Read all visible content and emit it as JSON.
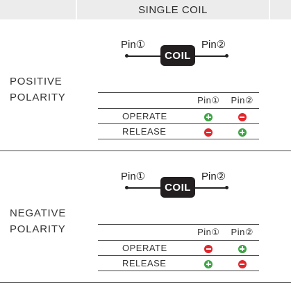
{
  "header": {
    "title": "SINGLE COIL"
  },
  "symbols": {
    "plus_color": "#3da544",
    "minus_color": "#e2262c"
  },
  "sections": [
    {
      "polarity_line1": "POSITIVE",
      "polarity_line2": "POLARITY",
      "diagram": {
        "pin_left": "Pin①",
        "pin_right": "Pin②",
        "coil": "COIL"
      },
      "table": {
        "pin1_header": "Pin①",
        "pin2_header": "Pin②",
        "rows": [
          {
            "label": "OPERATE",
            "pin1": "plus",
            "pin2": "minus"
          },
          {
            "label": "RELEASE",
            "pin1": "minus",
            "pin2": "plus"
          }
        ]
      }
    },
    {
      "polarity_line1": "NEGATIVE",
      "polarity_line2": "POLARITY",
      "diagram": {
        "pin_left": "Pin①",
        "pin_right": "Pin②",
        "coil": "COIL"
      },
      "table": {
        "pin1_header": "Pin①",
        "pin2_header": "Pin②",
        "rows": [
          {
            "label": "OPERATE",
            "pin1": "minus",
            "pin2": "plus"
          },
          {
            "label": "RELEASE",
            "pin1": "plus",
            "pin2": "minus"
          }
        ]
      }
    }
  ]
}
